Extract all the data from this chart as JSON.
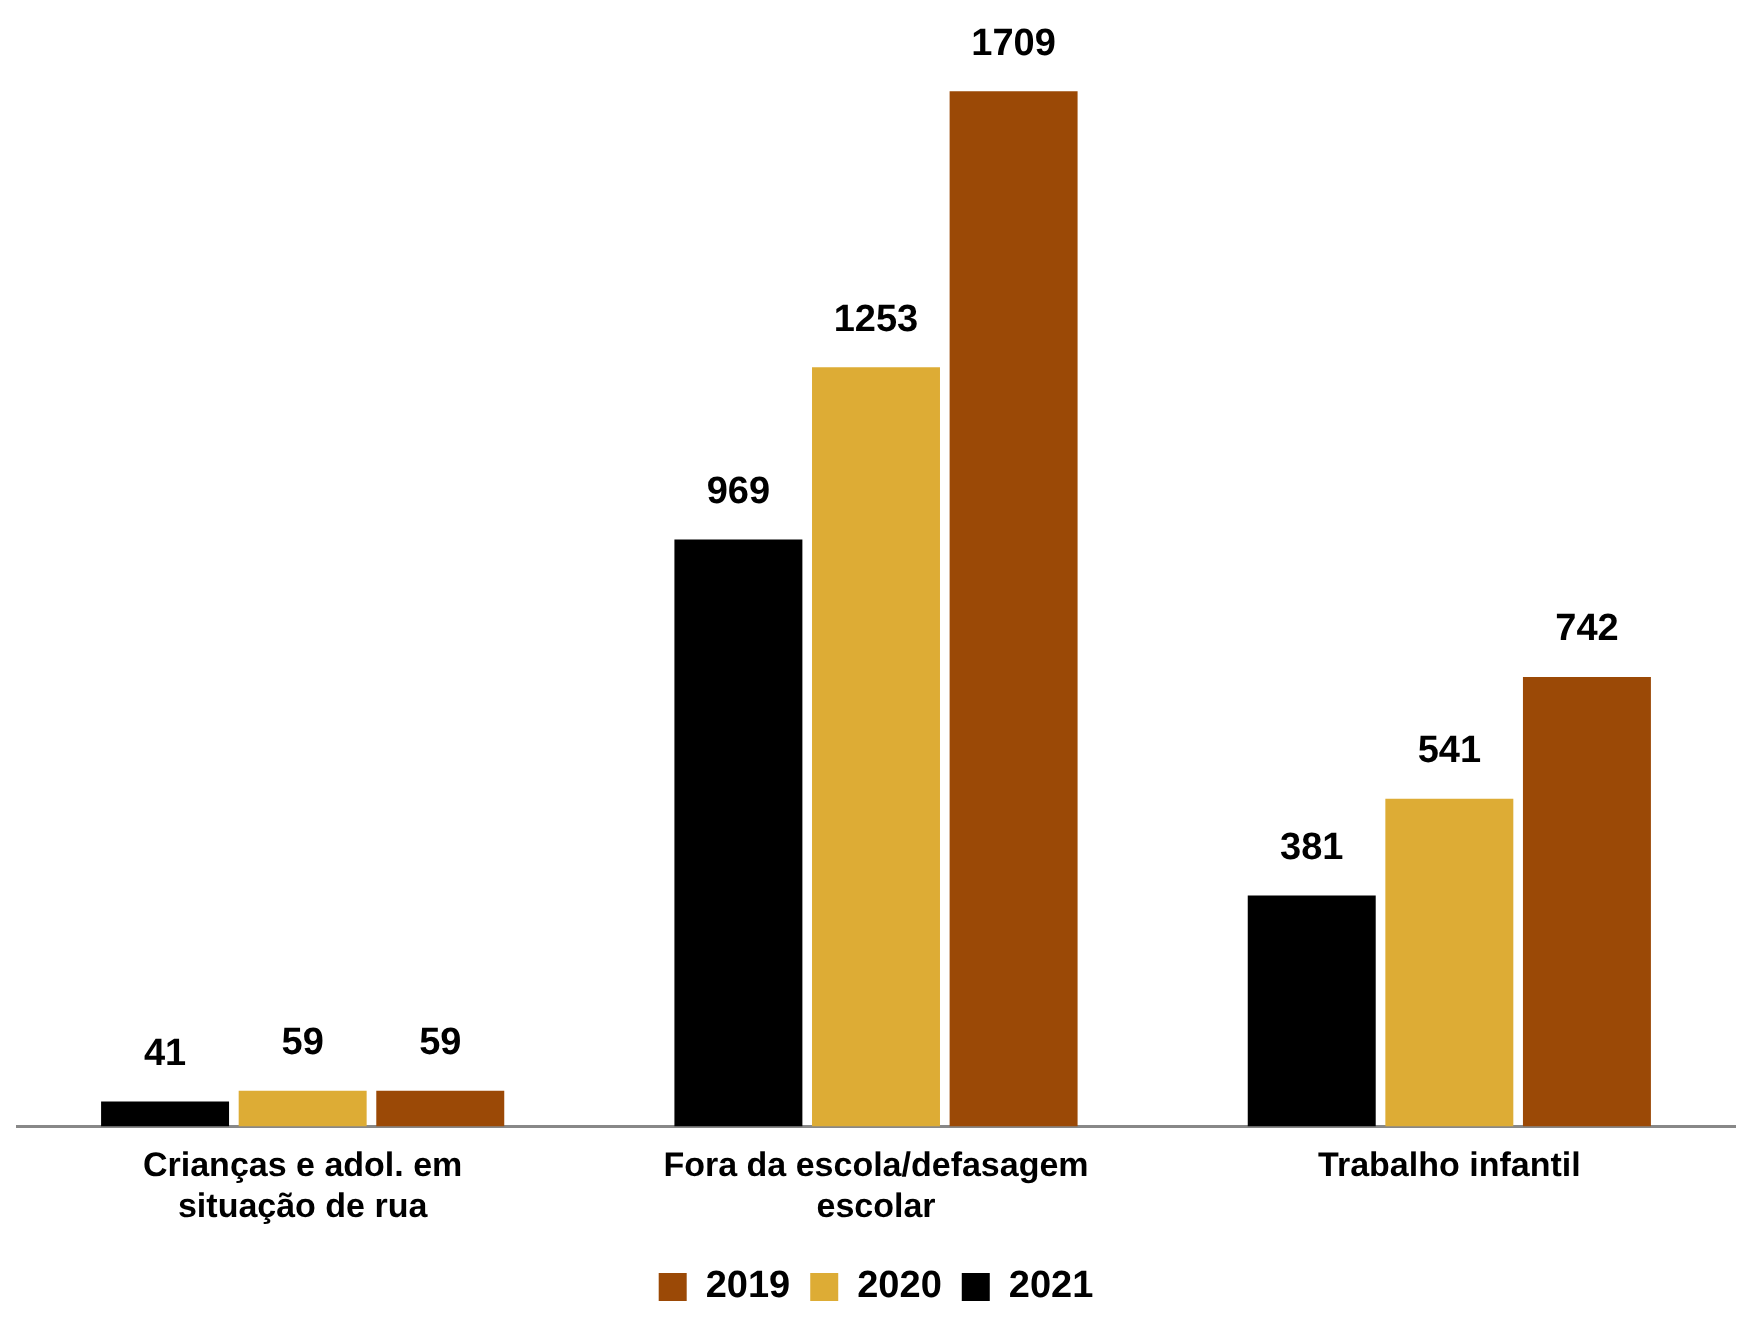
{
  "chart_data": {
    "type": "bar",
    "categories": [
      "Crianças e adol. em situação de rua",
      "Fora da escola/defasagem escolar",
      "Trabalho infantil"
    ],
    "series": [
      {
        "name": "2021",
        "color": "#000000",
        "values": [
          41,
          969,
          381
        ]
      },
      {
        "name": "2020",
        "color": "#ddac35",
        "values": [
          59,
          1253,
          541
        ]
      },
      {
        "name": "2019",
        "color": "#9b4906",
        "values": [
          59,
          1709,
          742
        ]
      }
    ],
    "data_labels": true,
    "legend": "bottom",
    "grid": false
  }
}
